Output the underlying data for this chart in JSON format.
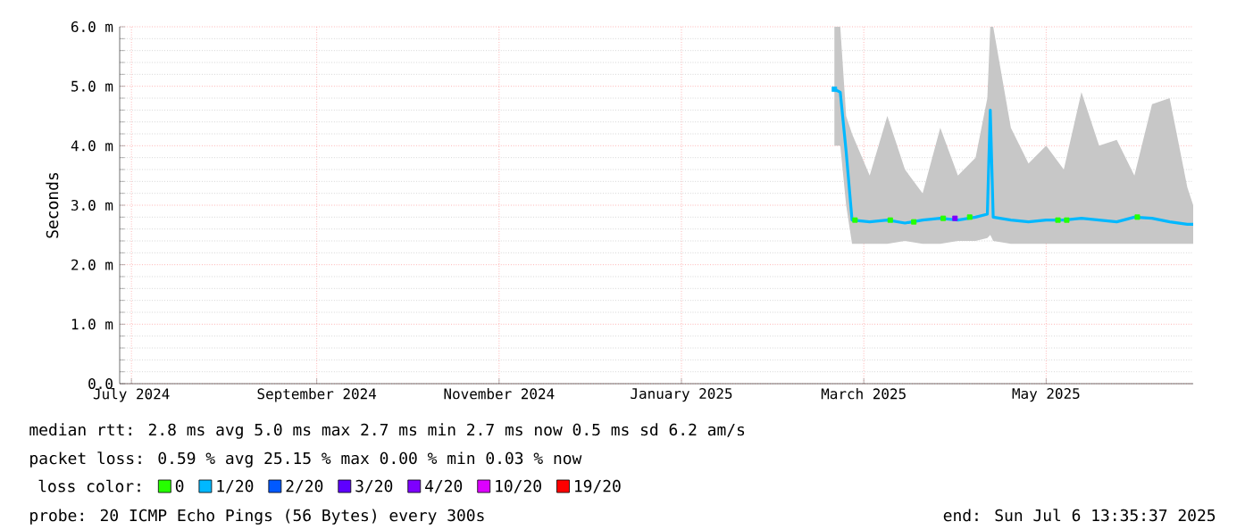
{
  "chart_data": {
    "type": "line",
    "ylabel": "Seconds",
    "xlim": [
      "2024-07-06",
      "2025-07-06"
    ],
    "xticks": [
      {
        "value": "2024-07-10",
        "label": "July 2024"
      },
      {
        "value": "2024-09-11",
        "label": "September 2024"
      },
      {
        "value": "2024-11-12",
        "label": "November 2024"
      },
      {
        "value": "2025-01-13",
        "label": "January 2025"
      },
      {
        "value": "2025-03-16",
        "label": "March 2025"
      },
      {
        "value": "2025-05-17",
        "label": "May 2025"
      }
    ],
    "ylim": [
      0,
      6
    ],
    "yticks": [
      {
        "value": 0,
        "label": "0.0"
      },
      {
        "value": 1,
        "label": "1.0 m"
      },
      {
        "value": 2,
        "label": "2.0 m"
      },
      {
        "value": 3,
        "label": "3.0 m"
      },
      {
        "value": 4,
        "label": "4.0 m"
      },
      {
        "value": 5,
        "label": "5.0 m"
      },
      {
        "value": 6,
        "label": "6.0 m"
      }
    ],
    "grid": true,
    "legend": "bottom",
    "legend_title": "loss color:",
    "series": [
      {
        "color": "#00b8ff",
        "x": [
          "2025-03-06",
          "2025-03-08",
          "2025-03-10",
          "2025-03-12",
          "2025-03-18",
          "2025-03-24",
          "2025-03-30",
          "2025-04-05",
          "2025-04-11",
          "2025-04-17",
          "2025-04-23",
          "2025-04-27",
          "2025-04-28",
          "2025-04-29",
          "2025-05-05",
          "2025-05-11",
          "2025-05-17",
          "2025-05-23",
          "2025-05-29",
          "2025-06-04",
          "2025-06-10",
          "2025-06-16",
          "2025-06-22",
          "2025-06-28",
          "2025-07-04",
          "2025-07-06"
        ],
        "values": [
          4.95,
          4.9,
          3.9,
          2.75,
          2.72,
          2.75,
          2.7,
          2.75,
          2.78,
          2.75,
          2.8,
          2.85,
          4.6,
          2.8,
          2.75,
          2.72,
          2.75,
          2.75,
          2.78,
          2.75,
          2.72,
          2.8,
          2.78,
          2.72,
          2.68,
          2.68
        ],
        "lower": [
          4.0,
          4.0,
          3.0,
          2.35,
          2.35,
          2.35,
          2.4,
          2.35,
          2.35,
          2.4,
          2.4,
          2.45,
          2.5,
          2.4,
          2.35,
          2.35,
          2.35,
          2.35,
          2.35,
          2.35,
          2.35,
          2.35,
          2.35,
          2.35,
          2.35,
          2.35
        ],
        "upper": [
          6.0,
          6.0,
          4.5,
          4.2,
          3.5,
          4.5,
          3.6,
          3.2,
          4.3,
          3.5,
          3.8,
          4.8,
          6.0,
          6.0,
          4.3,
          3.7,
          4.0,
          3.6,
          4.9,
          4.0,
          4.1,
          3.5,
          4.7,
          4.8,
          3.3,
          3.0
        ]
      },
      {
        "type": "scatter",
        "name": "0",
        "color": "#26ff00",
        "x": [
          "2025-03-13",
          "2025-03-25",
          "2025-04-02",
          "2025-04-12",
          "2025-04-21",
          "2025-05-21",
          "2025-05-24",
          "2025-06-17"
        ],
        "values": [
          2.75,
          2.75,
          2.72,
          2.78,
          2.8,
          2.75,
          2.75,
          2.8
        ]
      },
      {
        "type": "scatter",
        "name": "1/20",
        "color": "#00b8ff",
        "x": [
          "2025-03-06"
        ],
        "values": [
          4.95
        ]
      },
      {
        "type": "scatter",
        "name": "2/20",
        "color": "#0059ff"
      },
      {
        "type": "scatter",
        "name": "3/20",
        "color": "#5e00ff"
      },
      {
        "type": "scatter",
        "name": "4/20",
        "color": "#7e00ff",
        "x": [
          "2025-04-16"
        ],
        "values": [
          2.78
        ]
      },
      {
        "type": "scatter",
        "name": "10/20",
        "color": "#dd00ff"
      },
      {
        "type": "scatter",
        "name": "19/20",
        "color": "#ff0000"
      }
    ],
    "annotations": [
      "median rtt:  2.8 ms avg  5.0 ms max  2.7 ms min  2.7 ms now  0.5 ms sd  6.2   am/s",
      "packet loss: 0.59 % avg  25.15 % max  0.00 % min  0.03 % now",
      "probe:       20 ICMP Echo Pings (56 Bytes) every 300s",
      "end: Sun Jul  6 13:35:37 2025"
    ]
  }
}
